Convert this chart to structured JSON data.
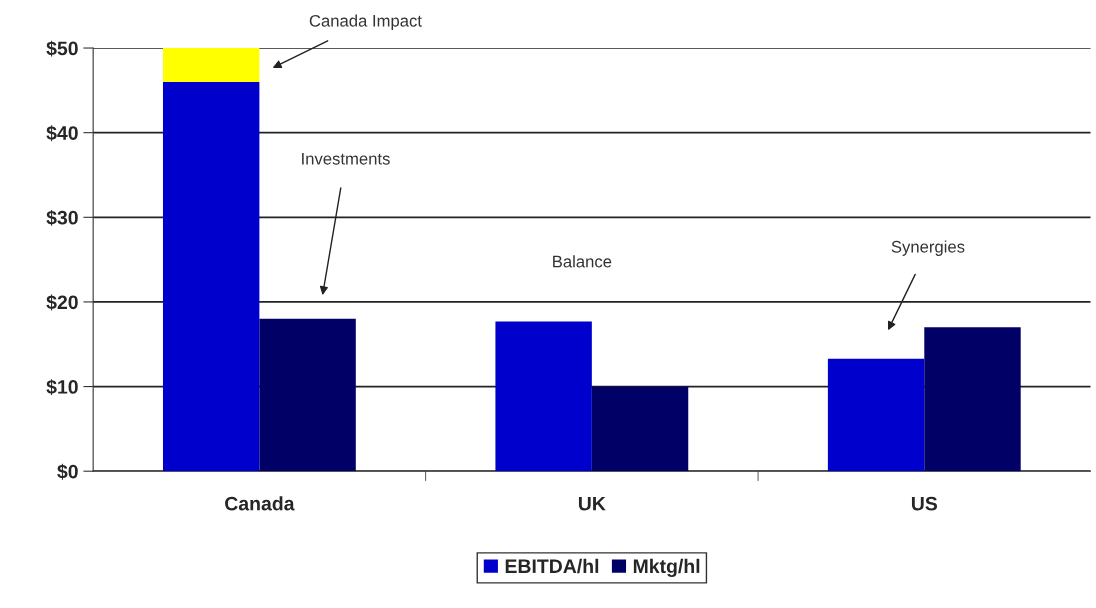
{
  "chart_data": {
    "type": "bar",
    "categories": [
      "Canada",
      "UK",
      "US"
    ],
    "series": [
      {
        "name": "EBITDA/hl",
        "color": "#0000cc",
        "values": [
          46,
          17.7,
          13.3
        ]
      },
      {
        "color": "#ffff00",
        "values": [
          4,
          null,
          null
        ],
        "base": [
          46,
          null,
          null
        ]
      },
      {
        "name": "Mktg/hl",
        "color": "#000066",
        "values": [
          18,
          10,
          17
        ]
      }
    ],
    "ylim": [
      0,
      50
    ],
    "yticks": [
      {
        "value": 0,
        "label": "$0"
      },
      {
        "value": 10,
        "label": "$10"
      },
      {
        "value": 20,
        "label": "$20"
      },
      {
        "value": 30,
        "label": "$30"
      },
      {
        "value": 40,
        "label": "$40"
      },
      {
        "value": 50,
        "label": "$50"
      }
    ],
    "grid": "y",
    "legend": "bottom",
    "annotations": [
      "Canada Impact",
      "Investments",
      "Balance",
      "Synergies"
    ]
  }
}
